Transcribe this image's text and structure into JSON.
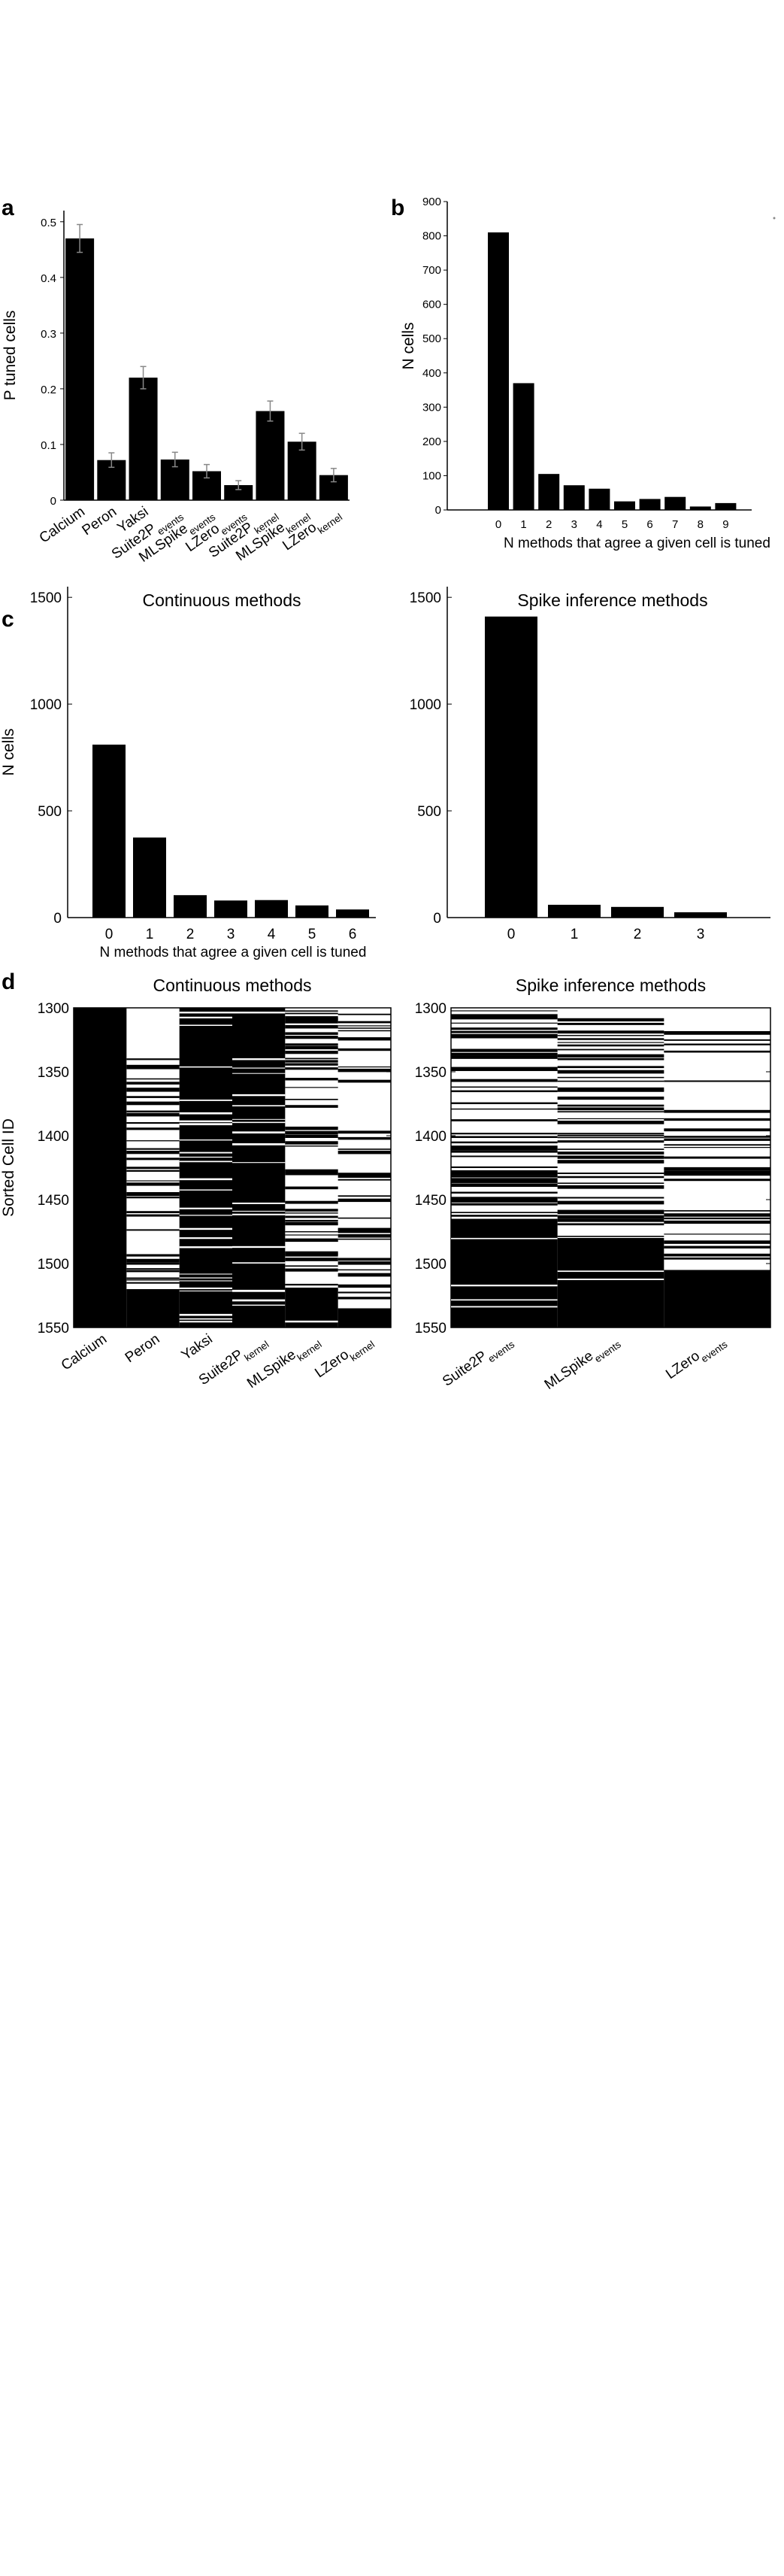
{
  "panels": {
    "a": "a",
    "b": "b",
    "c": "c",
    "d": "d"
  },
  "chart_data": [
    {
      "id": "a",
      "type": "bar",
      "categories": [
        {
          "main": "Calcium",
          "sub": ""
        },
        {
          "main": "Peron",
          "sub": ""
        },
        {
          "main": "Yaksi",
          "sub": ""
        },
        {
          "main": "Suite2P",
          "sub": "events"
        },
        {
          "main": "MLSpike",
          "sub": "events"
        },
        {
          "main": "LZero",
          "sub": "events"
        },
        {
          "main": "Suite2P",
          "sub": "kernel"
        },
        {
          "main": "MLSpike",
          "sub": "kernel"
        },
        {
          "main": "LZero",
          "sub": "kernel"
        }
      ],
      "values": [
        0.47,
        0.072,
        0.22,
        0.073,
        0.052,
        0.027,
        0.16,
        0.105,
        0.045
      ],
      "errors": [
        0.025,
        0.013,
        0.02,
        0.013,
        0.012,
        0.008,
        0.018,
        0.015,
        0.012
      ],
      "ylabel": "P tuned cells",
      "ylim": [
        0,
        0.52
      ],
      "yticks": [
        "0",
        "0.1",
        "0.2",
        "0.3",
        "0.4",
        "0.5"
      ],
      "ytick_values": [
        0,
        0.1,
        0.2,
        0.3,
        0.4,
        0.5
      ]
    },
    {
      "id": "b",
      "type": "bar",
      "categories": [
        "0",
        "1",
        "2",
        "3",
        "4",
        "5",
        "6",
        "7",
        "8",
        "9"
      ],
      "values": [
        810,
        370,
        105,
        72,
        62,
        25,
        32,
        38,
        10,
        20
      ],
      "xlabel": "N methods that agree a given cell is tuned",
      "ylabel": "N cells",
      "ylim": [
        0,
        900
      ],
      "yticks": [
        "0",
        "100",
        "200",
        "300",
        "400",
        "500",
        "600",
        "700",
        "800",
        "900"
      ],
      "ytick_values": [
        0,
        100,
        200,
        300,
        400,
        500,
        600,
        700,
        800,
        900
      ]
    },
    {
      "id": "c-left",
      "type": "bar",
      "title": "Continuous methods",
      "categories": [
        "0",
        "1",
        "2",
        "3",
        "4",
        "5",
        "6"
      ],
      "values": [
        810,
        375,
        105,
        80,
        82,
        57,
        38
      ],
      "xlabel": "N methods that agree a given cell is tuned",
      "ylabel": "N cells",
      "ylim": [
        0,
        1550
      ],
      "yticks": [
        "0",
        "500",
        "1000",
        "1500"
      ],
      "ytick_values": [
        0,
        500,
        1000,
        1500
      ]
    },
    {
      "id": "c-right",
      "type": "bar",
      "title": "Spike inference methods",
      "categories": [
        "0",
        "1",
        "2",
        "3"
      ],
      "values": [
        1410,
        60,
        50,
        25
      ],
      "ylim": [
        0,
        1550
      ],
      "yticks": [
        "0",
        "500",
        "1000",
        "1500"
      ],
      "ytick_values": [
        0,
        500,
        1000,
        1500
      ]
    },
    {
      "id": "d-left",
      "type": "heatmap",
      "title": "Continuous methods",
      "ylabel": "Sorted Cell ID",
      "ylim": [
        1300,
        1550
      ],
      "yticks": [
        "1300",
        "1350",
        "1400",
        "1450",
        "1500",
        "1550"
      ],
      "ytick_values": [
        1300,
        1350,
        1400,
        1450,
        1500,
        1550
      ],
      "columns": [
        {
          "main": "Calcium",
          "sub": ""
        },
        {
          "main": "Peron",
          "sub": ""
        },
        {
          "main": "Yaksi",
          "sub": ""
        },
        {
          "main": "Suite2P",
          "sub": "kernel"
        },
        {
          "main": "MLSpike",
          "sub": "kernel"
        },
        {
          "main": "LZero",
          "sub": "kernel"
        }
      ],
      "colors": {
        "tuned": "#000000",
        "not_tuned": "#ffffff"
      }
    },
    {
      "id": "d-right",
      "type": "heatmap",
      "title": "Spike inference methods",
      "ylim": [
        1300,
        1550
      ],
      "yticks": [
        "1300",
        "1350",
        "1400",
        "1450",
        "1500",
        "1550"
      ],
      "ytick_values": [
        1300,
        1350,
        1400,
        1450,
        1500,
        1550
      ],
      "columns": [
        {
          "main": "Suite2P",
          "sub": "events"
        },
        {
          "main": "MLSpike",
          "sub": "events"
        },
        {
          "main": "LZero",
          "sub": "events"
        }
      ],
      "colors": {
        "tuned": "#000000",
        "not_tuned": "#ffffff"
      }
    }
  ]
}
